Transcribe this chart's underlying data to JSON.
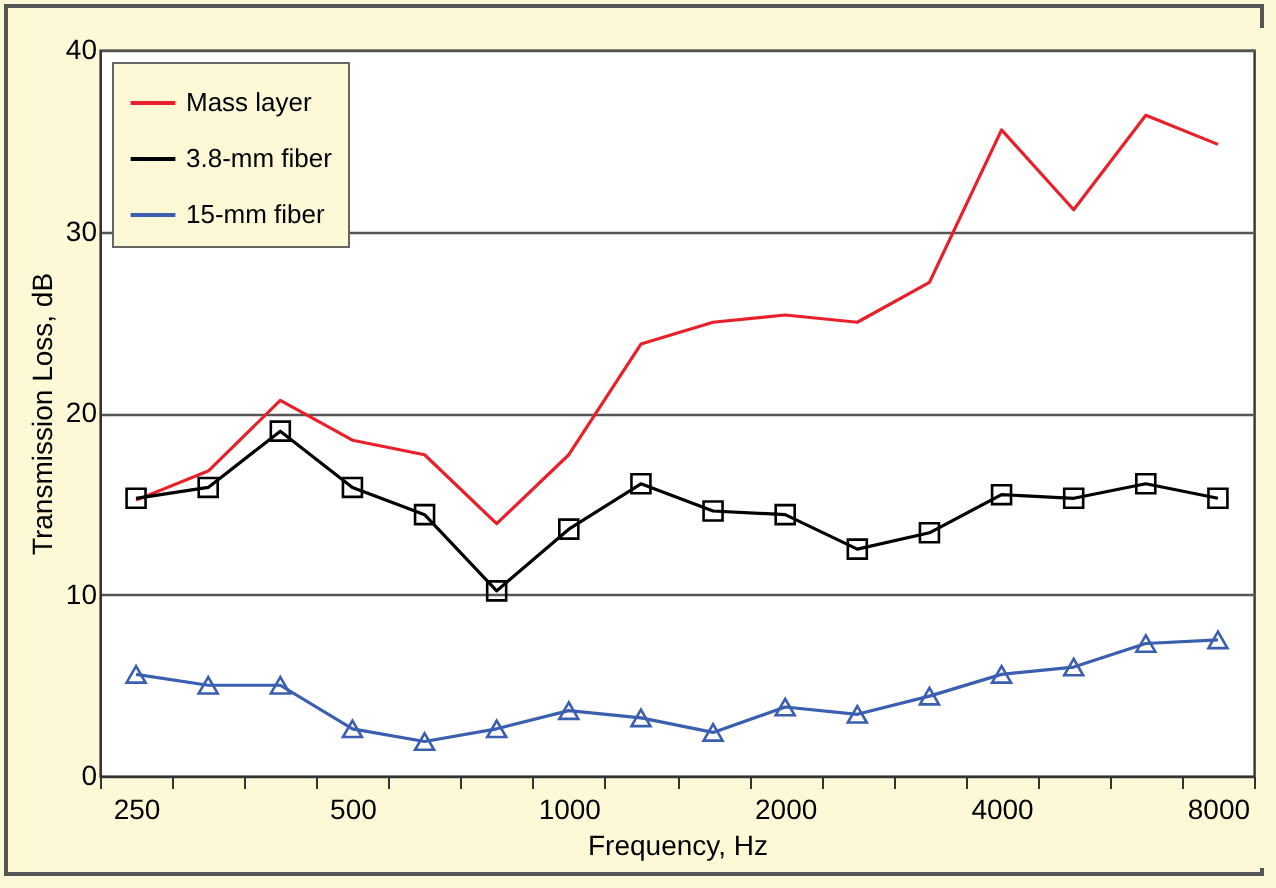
{
  "chart_data": {
    "type": "line",
    "xlabel": "Frequency, Hz",
    "ylabel": "Transmission Loss, dB",
    "categories": [
      "250",
      null,
      null,
      "500",
      null,
      null,
      "1000",
      null,
      null,
      "2000",
      null,
      null,
      "4000",
      null,
      null,
      "8000"
    ],
    "series": [
      {
        "name": "Mass layer",
        "color": "#e8202a",
        "marker": "none",
        "values": [
          15.2,
          16.8,
          20.7,
          18.5,
          17.7,
          13.9,
          17.7,
          23.8,
          25.0,
          25.4,
          25.0,
          27.2,
          35.6,
          31.2,
          36.4,
          34.8
        ]
      },
      {
        "name": "3.8-mm fiber",
        "color": "#000000",
        "marker": "square",
        "values": [
          15.3,
          15.9,
          19.0,
          15.9,
          14.4,
          10.2,
          13.6,
          16.1,
          14.6,
          14.4,
          12.5,
          13.4,
          15.5,
          15.3,
          16.1,
          15.3
        ]
      },
      {
        "name": "15-mm fiber",
        "color": "#3a5fb0",
        "marker": "triangle",
        "values": [
          5.6,
          5.0,
          5.0,
          2.6,
          1.9,
          2.6,
          3.6,
          3.2,
          2.4,
          3.8,
          3.4,
          4.4,
          5.6,
          6.0,
          7.3,
          7.5
        ]
      }
    ],
    "ylim": [
      0,
      40
    ],
    "yticks": [
      0,
      10,
      20,
      30,
      40
    ],
    "grid": "y",
    "legend": "top left"
  }
}
